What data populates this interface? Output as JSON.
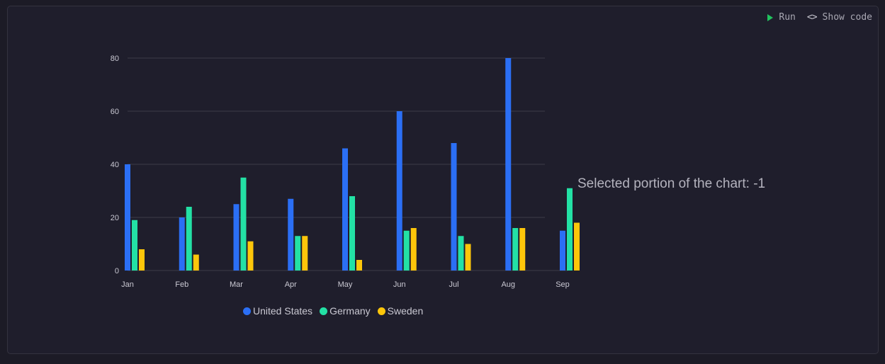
{
  "toolbar": {
    "run_label": "Run",
    "run_icon": "play-icon",
    "run_color": "#21c25e",
    "show_code_icon": "code-brackets-icon",
    "show_code_label": "Show code"
  },
  "selection": {
    "label": "Selected portion of the chart: -1"
  },
  "colors": {
    "background": "#1f1e2c",
    "grid": "#3d3c49",
    "axis_text": "#c9c8d2"
  },
  "chart_data": {
    "type": "bar",
    "categories": [
      "Jan",
      "Feb",
      "Mar",
      "Apr",
      "May",
      "Jun",
      "Jul",
      "Aug",
      "Sep"
    ],
    "series": [
      {
        "name": "United States",
        "color": "#2b6ff5",
        "values": [
          40,
          20,
          25,
          27,
          46,
          60,
          48,
          80,
          15
        ]
      },
      {
        "name": "Germany",
        "color": "#23e1a5",
        "values": [
          19,
          24,
          35,
          13,
          28,
          15,
          13,
          16,
          31
        ]
      },
      {
        "name": "Sweden",
        "color": "#fdc60a",
        "values": [
          8,
          6,
          11,
          13,
          4,
          16,
          10,
          16,
          18
        ]
      }
    ],
    "yticks": [
      "0",
      "20",
      "40",
      "60",
      "80"
    ],
    "ylim": [
      0,
      80
    ],
    "grid": true,
    "legend_position": "bottom"
  }
}
